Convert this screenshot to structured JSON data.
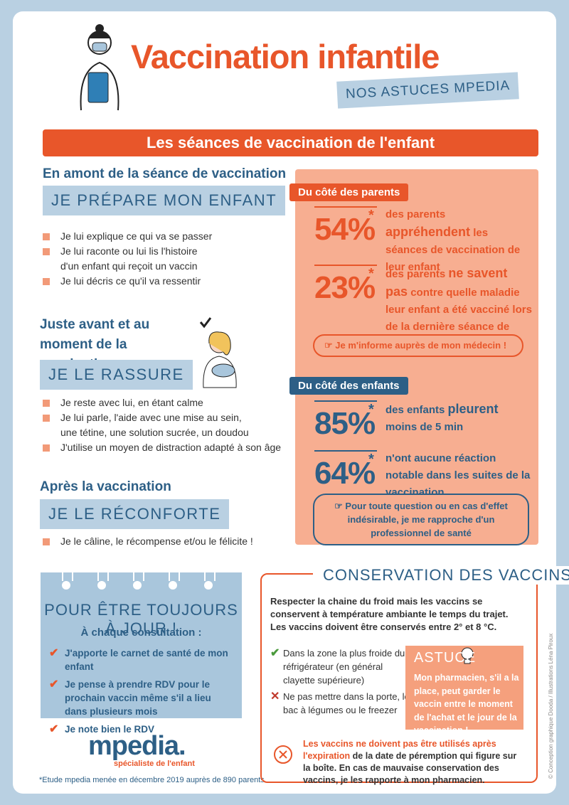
{
  "header": {
    "title": "Vaccination infantile",
    "subtitle": "NOS ASTUCES MPEDIA",
    "banner": "Les séances de vaccination de l'enfant"
  },
  "steps": [
    {
      "heading": "En amont de la séance de vaccination",
      "tag": "JE PRÉPARE MON ENFANT",
      "items": [
        [
          "Je lui explique ce qui va se passer"
        ],
        [
          "Je lui raconte ou lui lis l'histoire",
          "d'un enfant qui reçoit un vaccin"
        ],
        [
          "Je lui décris ce qu'il va ressentir"
        ]
      ]
    },
    {
      "heading": "Juste avant et au moment de la vaccination",
      "tag": "JE LE RASSURE",
      "items": [
        [
          "Je reste avec lui, en étant calme"
        ],
        [
          "Je lui parle, l'aide avec une mise au sein,",
          "une tétine, une solution sucrée, un doudou"
        ],
        [
          "J'utilise un moyen de distraction adapté à son âge"
        ]
      ]
    },
    {
      "heading": "Après la vaccination",
      "tag": "JE LE RÉCONFORTE",
      "items": [
        [
          "Je le câline, le récompense et/ou le félicite !"
        ]
      ]
    }
  ],
  "parents": {
    "label": "Du côté des parents",
    "stats": [
      {
        "value": "54%",
        "mark": "*",
        "before": "des parents",
        "highlight": "appréhendent",
        "after": "les séances de vaccination de leur enfant"
      },
      {
        "value": "23%",
        "mark": "*",
        "before": "des parents",
        "highlight": "ne savent pas",
        "after": "contre quelle maladie leur enfant a été vacciné lors de la dernière séance de vaccination"
      }
    ],
    "tip": "Je m'informe auprès de mon médecin !"
  },
  "children": {
    "label": "Du côté des enfants",
    "stats": [
      {
        "value": "85%",
        "mark": "*",
        "before": "des enfants",
        "highlight": "pleurent",
        "after": "moins de 5 min"
      },
      {
        "value": "64%",
        "mark": "*",
        "before": "n'ont aucune réaction notable dans les suites de la vaccination"
      }
    ],
    "tip": "Pour toute question ou en cas d'effet indésirable, je me rapproche d'un professionnel de santé"
  },
  "reminder": {
    "title": "POUR ÊTRE TOUJOURS À JOUR !",
    "subtitle": "À chaque consultation :",
    "items": [
      "J'apporte le carnet de santé de mon enfant",
      "Je pense à prendre RDV pour le prochain vaccin même s'il a lieu dans plusieurs mois",
      "Je note bien le RDV"
    ]
  },
  "logo": {
    "name": "mpedia.",
    "tagline": "spécialiste de l'enfant"
  },
  "footnote": "*Etude mpedia menée en décembre 2019 auprès de 890 parents",
  "conservation": {
    "title": "CONSERVATION DES VACCINS",
    "intro": [
      "Respecter la chaine du froid mais les vaccins se conservent à température ambiante le temps du trajet.",
      "Les vaccins doivent être conservés entre 2° et 8 °C."
    ],
    "do": "Dans la zone la plus froide du réfrigérateur (en général clayette supérieure)",
    "dont": "Ne pas mettre dans la porte, le bac à légumes ou le freezer",
    "tip_title": "ASTUCE",
    "tip": "Mon pharmacien, s'il a la place, peut garder le vaccin entre le moment de l'achat et le jour de la vaccination !",
    "warning_highlight": "Les vaccins ne doivent pas être utilisés après l'expiration",
    "warning": "de la date de péremption qui figure sur la boîte. En cas de mauvaise conservation des vaccins, je les rapporte à mon pharmacien."
  },
  "credit": "© Conception graphique Dooda / Illustrations Léna Piroux"
}
